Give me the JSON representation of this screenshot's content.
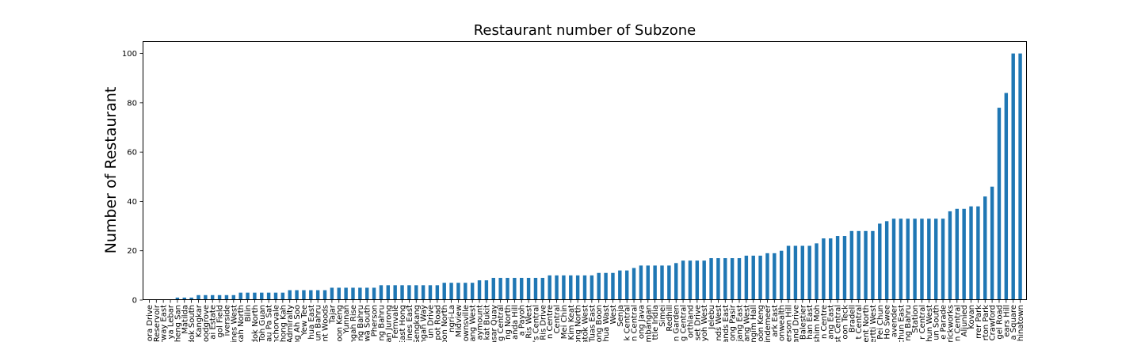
{
  "chart_data": {
    "type": "bar",
    "title": "Restaurant number of Subzone",
    "xlabel": "",
    "ylabel": "Number of Restaurant",
    "ylim": [
      0,
      105
    ],
    "yticks": [
      0,
      20,
      40,
      60,
      80,
      100
    ],
    "grid": false,
    "legend": "none",
    "bar_color": "#1f77b4",
    "categories": [
      "ora Drive",
      "Reservoir",
      "rway East",
      "ya Lebar",
      "heng San",
      "Matilda",
      "dok South",
      "Kangkar",
      "oodgrove",
      "ai Estate",
      "gol Field",
      "iverside",
      "ines West",
      "kah North",
      "Bilin",
      "dok North",
      "Toh Guan",
      "Lau Pa Sat",
      "anchorvale",
      "hong Kah",
      "Admiralty",
      "ng Ah Soo",
      "Yew Tee",
      "hua East",
      "un Bahru",
      "nt Woods",
      "Tajar",
      "Boon Keng",
      "Yunnan",
      "ngah Rise",
      "ng Bahru",
      "Rewa South",
      "Pherson",
      "ng Bahru",
      "an Jurong",
      "Fernvale",
      "East Hong",
      "ines East",
      "Sengkang",
      "ngah Way",
      "un Drive",
      "pot Road",
      "oon North",
      "ngri-La",
      "Midview",
      "ownsville",
      "ang West",
      "aymount",
      "kat Bukit",
      "pasar Quay",
      "g Central",
      "ng North",
      "anda Hill",
      "a Payoh",
      "Ris West",
      "e's Central",
      "Ris Drive",
      "n Centre",
      "Central",
      "Mei Chin",
      "Kim Keat",
      "ong North",
      "atok West",
      "Tuas East",
      "ong Boon",
      "hua Wast",
      "West",
      "Senja",
      "k Central",
      "n Central",
      "ong Java",
      "mbangan",
      "ttle India",
      "Simei",
      "Redhill",
      "n Garden",
      "g Central",
      "orthland",
      "set Drive",
      "yoh West",
      "Jelebu",
      "nds West",
      "ands East",
      "ong Pasir",
      "jang East",
      "ang West",
      "ngim Hall",
      "oon Keng",
      "indemeer",
      "ark East",
      "onwealth",
      "erson Hill",
      "and Drive",
      "Balestier",
      "han East",
      "shim Moh",
      "n Centre",
      "ang East",
      "st Central",
      "oon Teck",
      "Bradell",
      "t Central",
      "ent North",
      "ertti West",
      "Pei Chun",
      "Ho Swee",
      "avender",
      "chun East",
      "ng Bahru",
      "Station",
      "r Central",
      "hun West",
      "un South",
      "e Parade",
      "rickworks",
      "n Central",
      "Aljunied",
      "Kovan",
      "rrer Park",
      "rton Park",
      "Crawford",
      "gel Road",
      "ears Hill",
      "a Square",
      "hinatown"
    ],
    "values": [
      0,
      0,
      0,
      0,
      1,
      1,
      1,
      2,
      2,
      2,
      2,
      2,
      2,
      3,
      3,
      3,
      3,
      3,
      3,
      3,
      4,
      4,
      4,
      4,
      4,
      4,
      5,
      5,
      5,
      5,
      5,
      5,
      5,
      6,
      6,
      6,
      6,
      6,
      6,
      6,
      6,
      6,
      7,
      7,
      7,
      7,
      7,
      8,
      8,
      9,
      9,
      9,
      9,
      9,
      9,
      9,
      9,
      10,
      10,
      10,
      10,
      10,
      10,
      10,
      11,
      11,
      11,
      12,
      12,
      13,
      14,
      14,
      14,
      14,
      14,
      15,
      16,
      16,
      16,
      16,
      17,
      17,
      17,
      17,
      17,
      18,
      18,
      18,
      19,
      19,
      20,
      22,
      22,
      22,
      22,
      23,
      25,
      25,
      26,
      26,
      28,
      28,
      28,
      28,
      31,
      32,
      33,
      33,
      33,
      33,
      33,
      33,
      33,
      33,
      36,
      37,
      37,
      38,
      38,
      42,
      46,
      78,
      84,
      100,
      100
    ]
  }
}
